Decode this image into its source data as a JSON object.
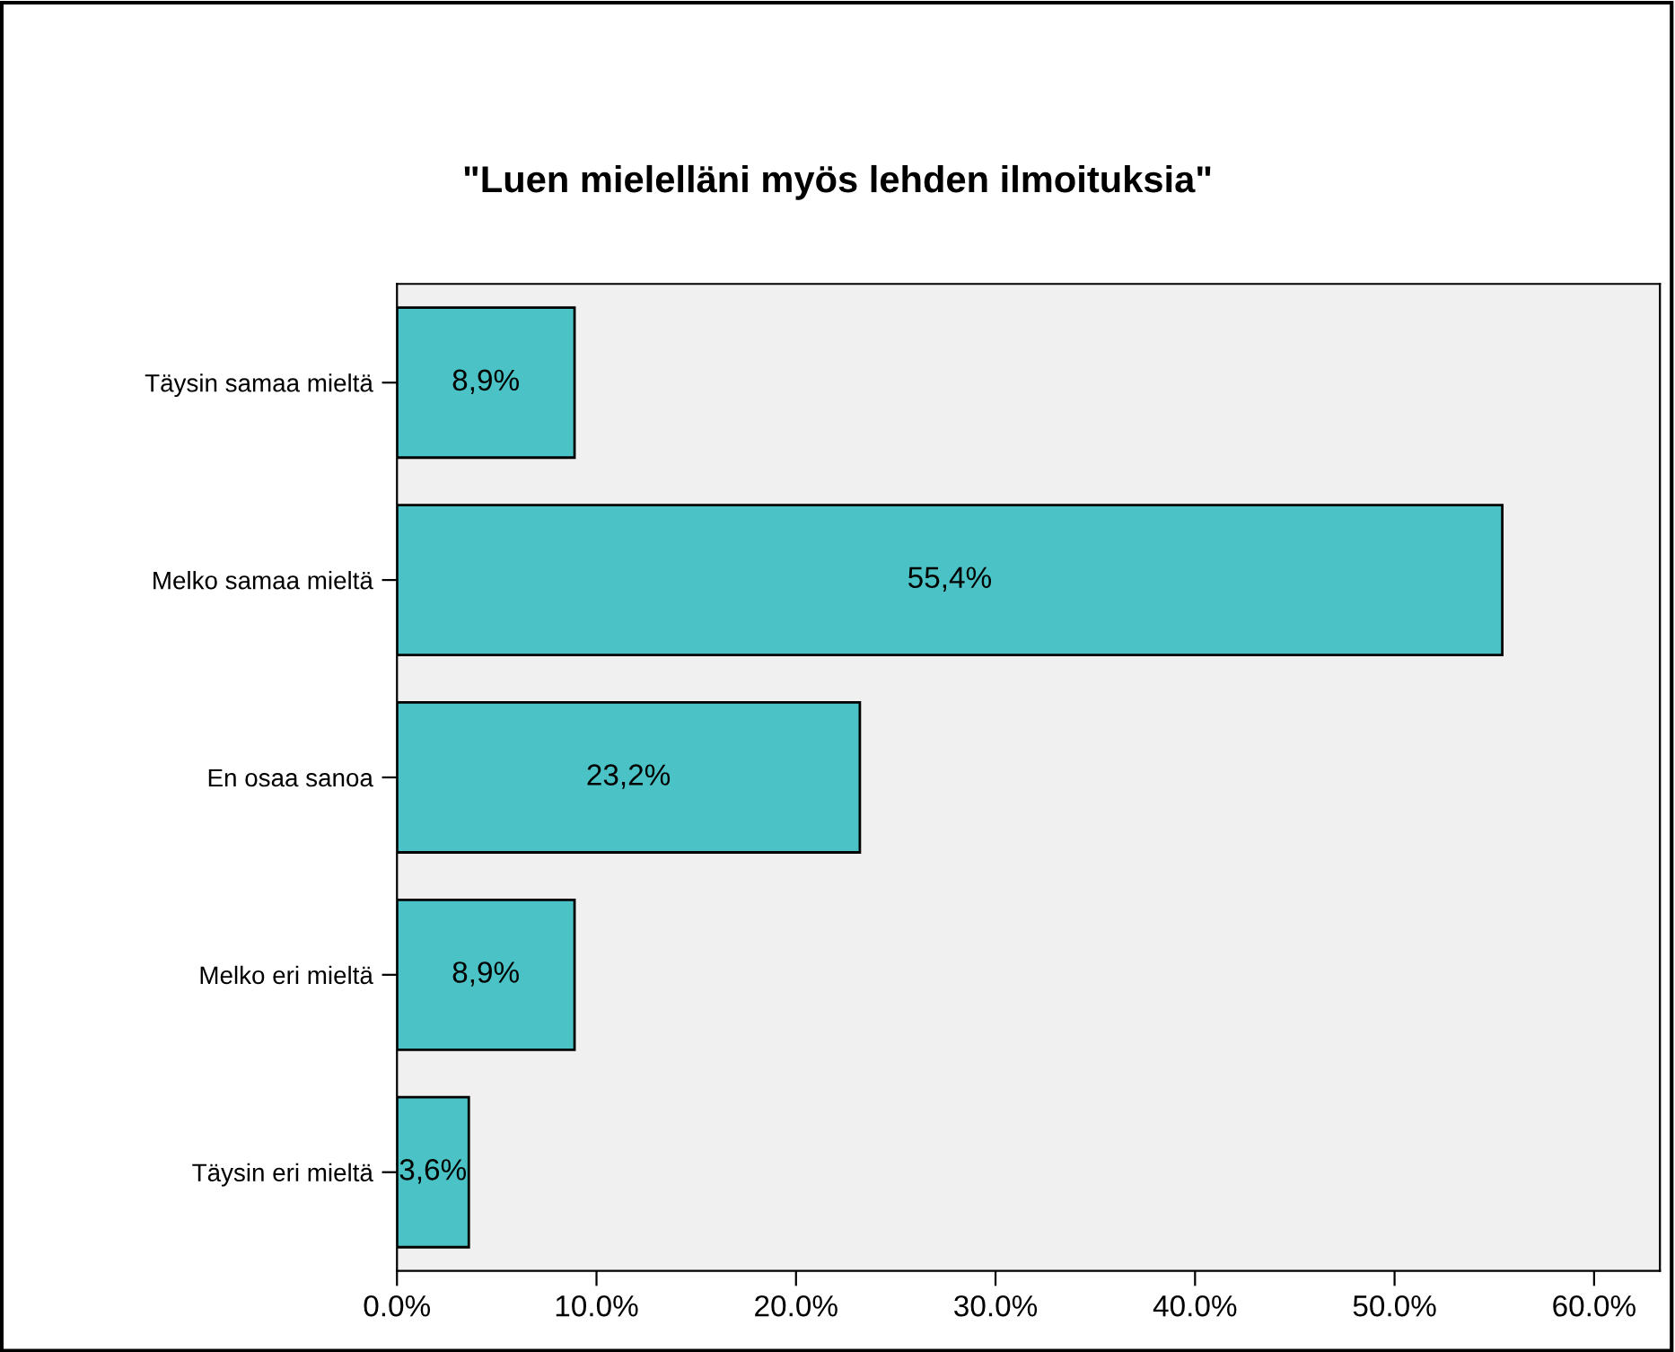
{
  "chart_data": {
    "type": "bar",
    "orientation": "horizontal",
    "title": "\"Luen mielelläni myös lehden ilmoituksia\"",
    "categories": [
      "Täysin samaa mieltä",
      "Melko samaa mieltä",
      "En osaa sanoa",
      "Melko eri mieltä",
      "Täysin eri mieltä"
    ],
    "values": [
      8.9,
      55.4,
      23.2,
      8.9,
      3.6
    ],
    "value_labels": [
      "8,9%",
      "55,4%",
      "23,2%",
      "8,9%",
      "3,6%"
    ],
    "color": "#4bc3c6",
    "xlim": [
      0,
      63.3
    ],
    "xticks": [
      {
        "value": 0,
        "label": "0.0%"
      },
      {
        "value": 10,
        "label": "10.0%"
      },
      {
        "value": 20,
        "label": "20.0%"
      },
      {
        "value": 30,
        "label": "30.0%"
      },
      {
        "value": 40,
        "label": "40.0%"
      },
      {
        "value": 50,
        "label": "50.0%"
      },
      {
        "value": 60,
        "label": "60.0%"
      }
    ],
    "grid": false,
    "legend": false
  }
}
